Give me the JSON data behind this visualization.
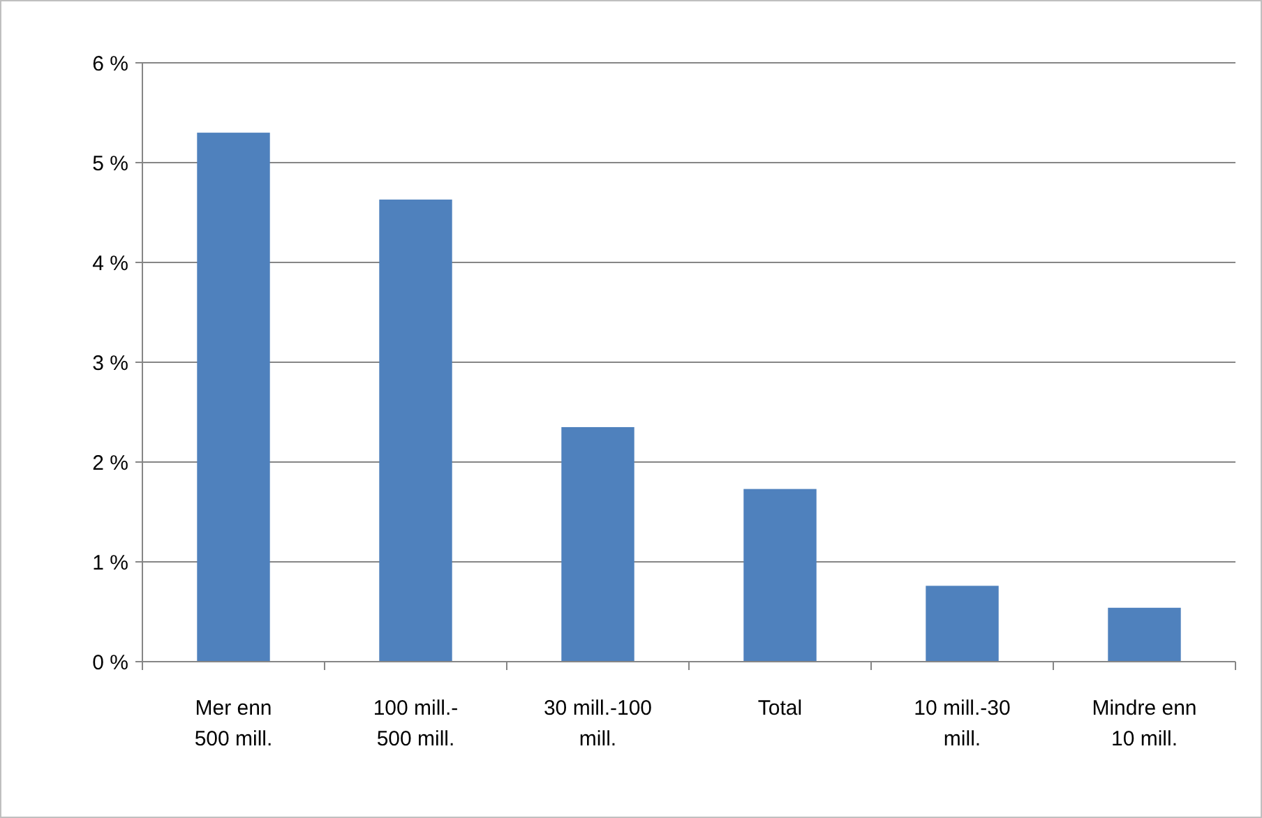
{
  "chart_data": {
    "type": "bar",
    "categories": [
      "Mer enn 500 mill.",
      "100 mill.- 500 mill.",
      "30 mill.-100 mill.",
      "Total",
      "10 mill.-30 mill.",
      "Mindre enn 10 mill."
    ],
    "values": [
      5.3,
      4.63,
      2.35,
      1.73,
      0.76,
      0.54
    ],
    "color": "#4f81bd",
    "ylim": [
      0,
      6
    ],
    "yticks": [
      {
        "value": 0,
        "label": "0 %"
      },
      {
        "value": 1,
        "label": "1 %"
      },
      {
        "value": 2,
        "label": "2 %"
      },
      {
        "value": 3,
        "label": "3 %"
      },
      {
        "value": 4,
        "label": "4 %"
      },
      {
        "value": 5,
        "label": "5 %"
      },
      {
        "value": 6,
        "label": "6 %"
      }
    ],
    "grid": "y"
  }
}
